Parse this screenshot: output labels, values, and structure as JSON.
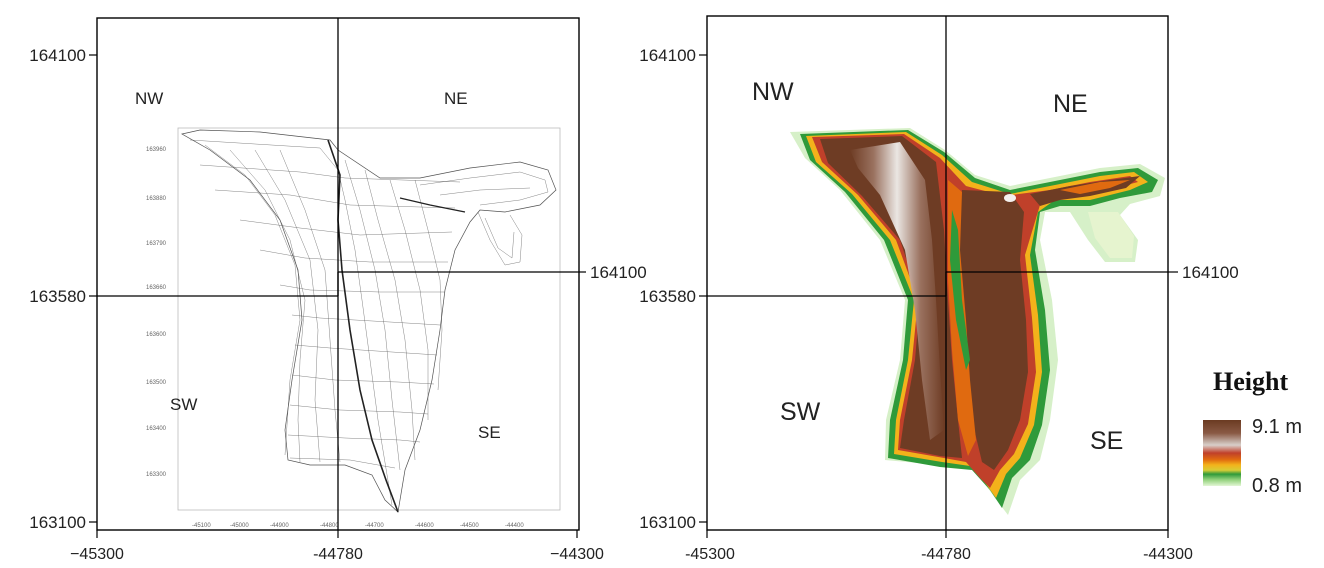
{
  "left_map": {
    "y_ticks": [
      "164100",
      "163580",
      "163100"
    ],
    "y_right_tick": "164100",
    "x_ticks": [
      "−45300",
      "-44780",
      "−44300"
    ],
    "quadrants": {
      "nw": "NW",
      "ne": "NE",
      "sw": "SW",
      "se": "SE"
    },
    "inner_x_ticks": [
      "-45100",
      "-45000",
      "-44900",
      "-44800",
      "-44700",
      "-44600",
      "-44500",
      "-44400"
    ],
    "inner_y_ticks": [
      "163960",
      "163880",
      "163790",
      "163660",
      "163600",
      "163500",
      "163400",
      "163300"
    ]
  },
  "right_map": {
    "y_ticks": [
      "164100",
      "163580",
      "163100"
    ],
    "y_right_tick": "164100",
    "x_ticks": [
      "-45300",
      "-44780",
      "-44300"
    ],
    "quadrants": {
      "nw": "NW",
      "ne": "NE",
      "sw": "SW",
      "se": "SE"
    }
  },
  "legend": {
    "title": "Height",
    "max_label": "9.1 m",
    "min_label": "0.8 m",
    "colors": [
      "#6b3b22",
      "#8a5a45",
      "#c8b7ae",
      "#f0eeec",
      "#c0402a",
      "#e06a10",
      "#f3b21b",
      "#d8cc35",
      "#2f9a3a",
      "#8fd078",
      "#d9f2c8"
    ]
  }
}
